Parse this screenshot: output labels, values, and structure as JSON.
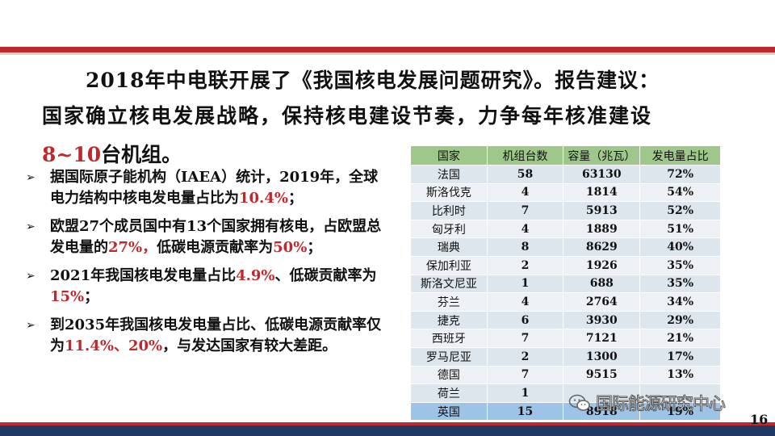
{
  "title": {
    "line1": "2018年中电联开展了《我国核电发展问题研究》。报告建议：",
    "line2": "国家确立核电发展战略，保持核电建设节奏，力争每年核准建设",
    "line3_highlight": "8~10",
    "line3_rest": "台机组。"
  },
  "bullets": [
    {
      "parts": [
        {
          "t": "据国际原子能机构（IAEA）统计，2019年，全球电力结构中核电发电量占比为",
          "c": ""
        },
        {
          "t": "10.4%",
          "c": "red"
        },
        {
          "t": "；",
          "c": ""
        }
      ]
    },
    {
      "parts": [
        {
          "t": "欧盟27个成员国中有13个国家拥有核电，占欧盟总发电量的",
          "c": ""
        },
        {
          "t": "27%，",
          "c": "red"
        },
        {
          "t": "低碳电源贡献率为",
          "c": ""
        },
        {
          "t": "50%",
          "c": "red"
        },
        {
          "t": "；",
          "c": ""
        }
      ]
    },
    {
      "parts": [
        {
          "t": "2021年我国核电发电量占比",
          "c": ""
        },
        {
          "t": "4.9%",
          "c": "red"
        },
        {
          "t": "、低碳贡献率为",
          "c": ""
        },
        {
          "t": "15%",
          "c": "red"
        },
        {
          "t": "；",
          "c": ""
        }
      ]
    },
    {
      "parts": [
        {
          "t": "到2035年我国核电发电量占比、低碳电源贡献率仅为",
          "c": ""
        },
        {
          "t": "11.4%、20%",
          "c": "red"
        },
        {
          "t": "，与发达国家有较大差距。",
          "c": ""
        }
      ]
    }
  ],
  "table": {
    "headers": [
      "国家",
      "机组台数",
      "容量（兆瓦）",
      "发电量占比"
    ],
    "rows": [
      [
        "法国",
        "58",
        "63130",
        "72%"
      ],
      [
        "斯洛伐克",
        "4",
        "1814",
        "54%"
      ],
      [
        "比利时",
        "7",
        "5913",
        "52%"
      ],
      [
        "匈牙利",
        "4",
        "1889",
        "51%"
      ],
      [
        "瑞典",
        "8",
        "8629",
        "40%"
      ],
      [
        "保加利亚",
        "2",
        "1926",
        "35%"
      ],
      [
        "斯洛文尼亚",
        "1",
        "688",
        "35%"
      ],
      [
        "芬兰",
        "4",
        "2764",
        "34%"
      ],
      [
        "捷克",
        "6",
        "3930",
        "29%"
      ],
      [
        "西班牙",
        "7",
        "7121",
        "21%"
      ],
      [
        "罗马尼亚",
        "2",
        "1300",
        "17%"
      ],
      [
        "德国",
        "7",
        "9515",
        "13%"
      ],
      [
        "荷兰",
        "1",
        "",
        ""
      ],
      [
        "英国",
        "15",
        "8918",
        "19%"
      ]
    ],
    "highlight_row": 13
  },
  "watermark": {
    "text": "国际能源研究中心",
    "icon": "wechat-icon"
  },
  "page_number": "16",
  "colors": {
    "accent_red": "#c0282d",
    "header_green": "#9fc78a",
    "navy": "#1f3864",
    "highlight_blue": "#9dc3e6"
  }
}
